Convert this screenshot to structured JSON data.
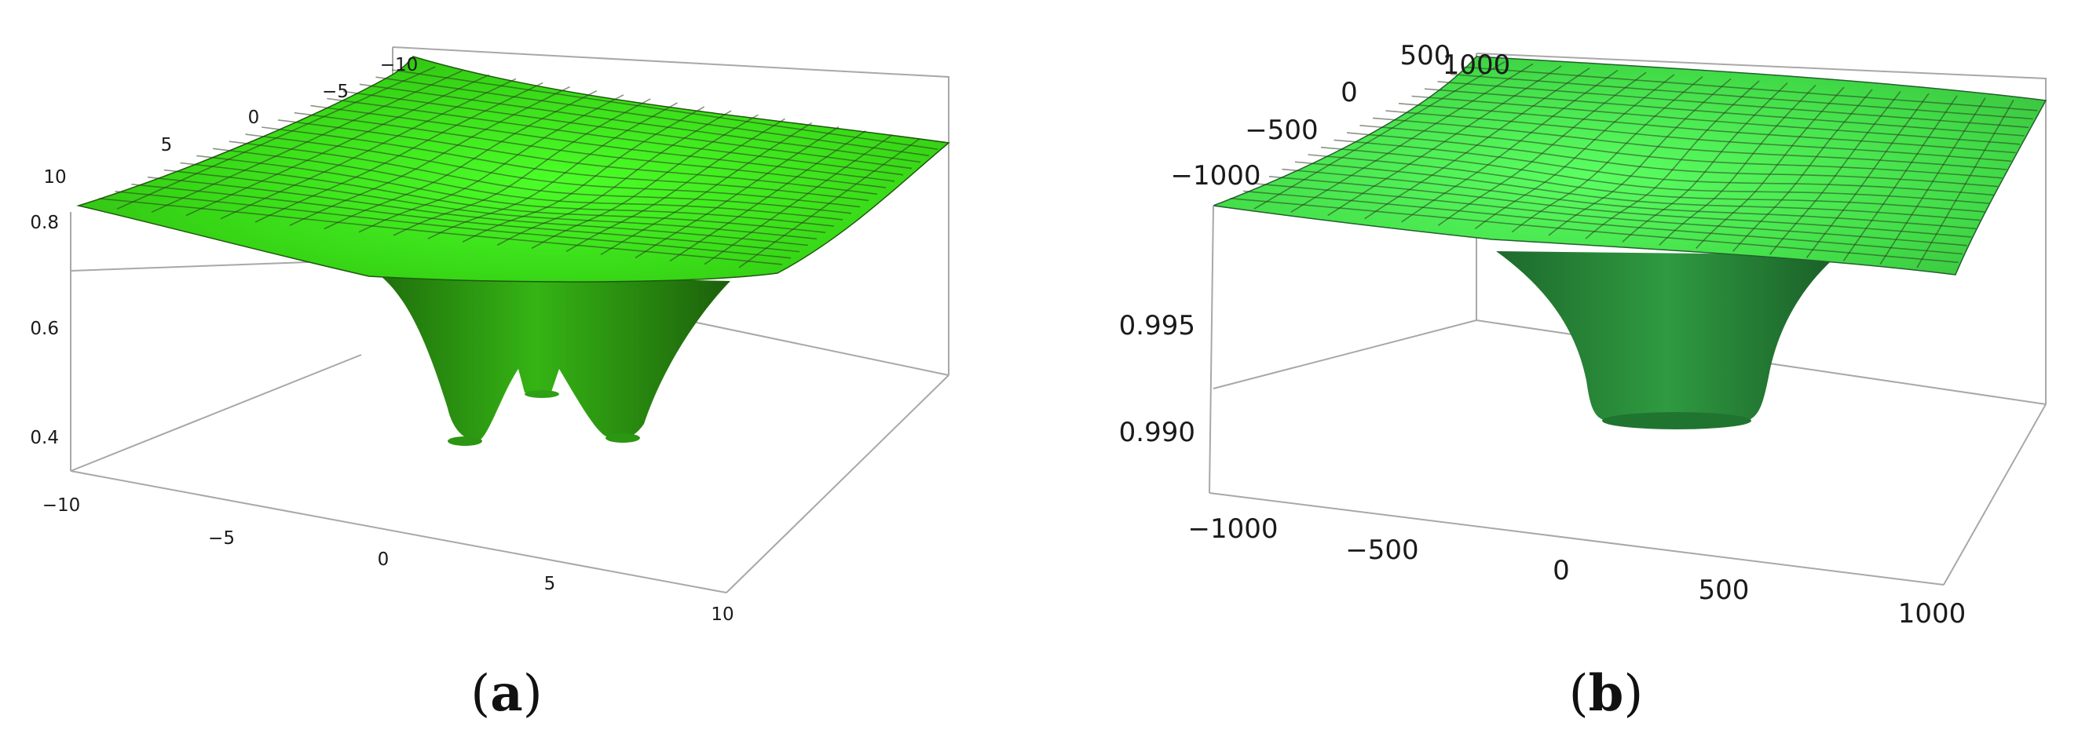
{
  "chart_data": [
    {
      "type": "surface3d",
      "panel": "a",
      "caption_open": "(",
      "caption_letter": "a",
      "caption_close": ")",
      "x_ticks": [
        "−10",
        "−5",
        "0",
        "5",
        "10"
      ],
      "y_ticks": [
        "10",
        "5",
        "0",
        "−5",
        "−10"
      ],
      "z_ticks": [
        "0.8",
        "0.6",
        "0.4"
      ],
      "xlim": [
        -10,
        10
      ],
      "ylim": [
        -10,
        10
      ],
      "zlim": [
        0.33,
        0.85
      ],
      "surface_edge_value": 0.82,
      "rim_value": 0.69,
      "wells": [
        {
          "x": -3.0,
          "y": 1.5,
          "min": 0.39
        },
        {
          "x": 2.5,
          "y": 2.0,
          "min": 0.39
        },
        {
          "x": 0.5,
          "y": 3.5,
          "min": 0.47
        }
      ],
      "surface_color": "#3fdc1e",
      "mesh": true
    },
    {
      "type": "surface3d",
      "panel": "b",
      "caption_open": "(",
      "caption_letter": "b",
      "caption_close": ")",
      "x_ticks": [
        "−1000",
        "−500",
        "0",
        "500",
        "1000"
      ],
      "y_ticks": [
        "1000",
        "500",
        "0",
        "−500",
        "−1000"
      ],
      "z_ticks": [
        "0.995",
        "0.990"
      ],
      "xlim": [
        -1000,
        1000
      ],
      "ylim": [
        -1000,
        1000
      ],
      "zlim": [
        0.9875,
        0.9995
      ],
      "surface_edge_value": 0.999,
      "rim_value": 0.997,
      "wells": [
        {
          "x": 0,
          "y": 0,
          "min": 0.9895
        }
      ],
      "surface_color": "#45e04a",
      "mesh": true
    }
  ]
}
